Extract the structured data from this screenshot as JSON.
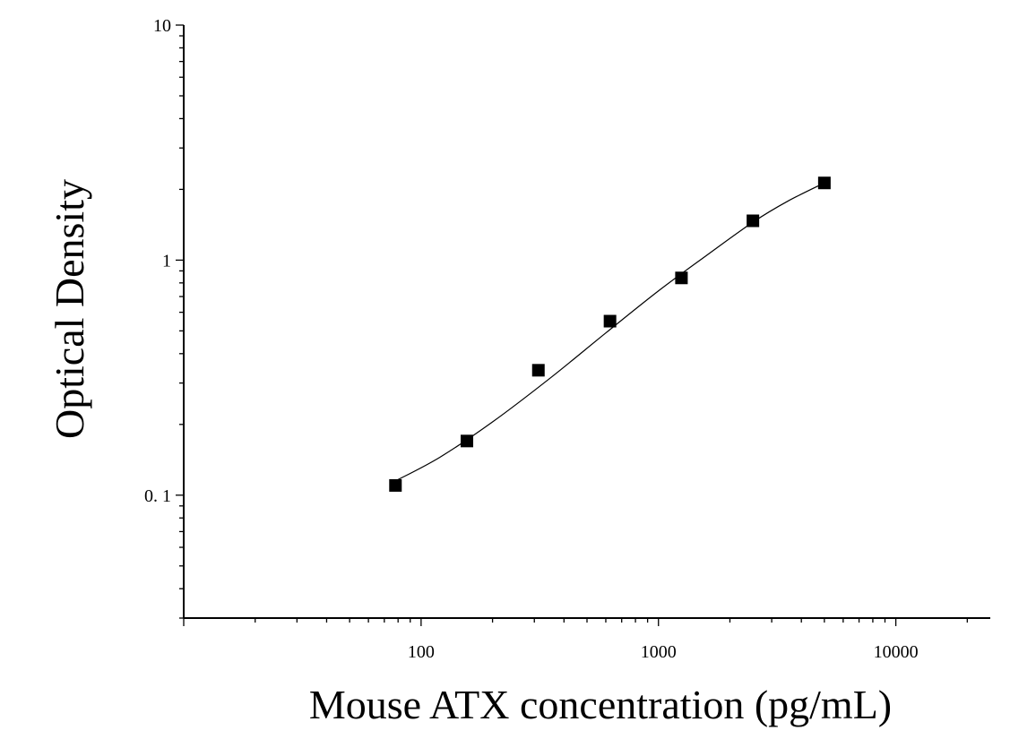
{
  "chart_data": {
    "type": "scatter",
    "title": "",
    "xlabel": "Mouse ATX concentration (pg/mL)",
    "ylabel": "Optical Density",
    "x_scale": "log",
    "y_scale": "log",
    "xlim": [
      10,
      25000
    ],
    "ylim": [
      0.03,
      10
    ],
    "x_ticks": [
      100,
      1000,
      10000
    ],
    "x_tick_labels": [
      "100",
      "1000",
      "10000"
    ],
    "y_ticks": [
      0.1,
      1,
      10
    ],
    "y_tick_labels": [
      "0. 1",
      "1",
      "10"
    ],
    "grid": false,
    "legend": "none",
    "series": [
      {
        "kind": "points",
        "marker": "square",
        "color": "#000000",
        "x": [
          78,
          156,
          312,
          625,
          1250,
          2500,
          5000
        ],
        "y": [
          0.11,
          0.17,
          0.34,
          0.55,
          0.84,
          1.47,
          2.13
        ]
      },
      {
        "kind": "fitted-curve",
        "color": "#000000",
        "x": [
          78,
          120,
          200,
          350,
          600,
          1000,
          1600,
          2500,
          3500,
          5000
        ],
        "y": [
          0.115,
          0.145,
          0.205,
          0.315,
          0.49,
          0.74,
          1.05,
          1.45,
          1.78,
          2.13
        ]
      }
    ]
  }
}
